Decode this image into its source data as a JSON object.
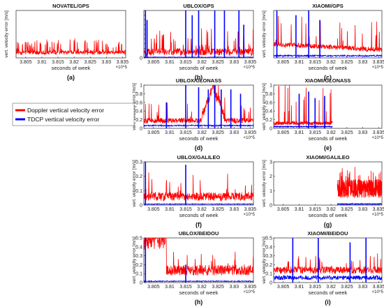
{
  "colors": {
    "doppler": "#ff0000",
    "tdcp": "#0000ff",
    "axis": "#262626",
    "grid": "#ffffff"
  },
  "legend": {
    "items": [
      "Doppler vertical velocity error",
      "TDCP vertical velocity error"
    ],
    "placement": "left-middle"
  },
  "chart_data": [
    {
      "type": "line",
      "title": "NOVATEL/GPS",
      "panel_label": "(a)",
      "xlabel": "seconds of week",
      "ylabel": "vert. velocity error [m/s]",
      "xlim": [
        380200,
        383600
      ],
      "x_multiplier": "×10^5",
      "xticks": [
        380500,
        381000,
        381500,
        382000,
        382500,
        383000,
        383500
      ],
      "xtick_labels": [
        "3.805",
        "3.81",
        "3.815",
        "3.82",
        "3.825",
        "3.83",
        "3.835"
      ],
      "ylim": [
        0,
        0.35
      ],
      "yticks": [],
      "ytick_labels": [],
      "series": [
        {
          "name": "Doppler vertical velocity error",
          "color": "#ff0000",
          "baseline": 0.025,
          "noise": 0.03,
          "spike_rate": 0.15,
          "spike_max": 0.09,
          "x_start": 380200,
          "x_end": 383600
        }
      ]
    },
    {
      "type": "line",
      "title": "UBLOX/GPS",
      "panel_label": "(b)",
      "xlabel": "seconds of week",
      "ylabel": "",
      "xlim": [
        380200,
        383600
      ],
      "x_multiplier": "×10^5",
      "xticks": [
        380500,
        381000,
        381500,
        382000,
        382500,
        383000,
        383500
      ],
      "xtick_labels": [
        "3.805",
        "3.81",
        "3.815",
        "3.82",
        "3.825",
        "3.83",
        "3.835"
      ],
      "ylim": [
        0,
        1
      ],
      "yticks": [
        0,
        0.1,
        0.2,
        0.3,
        0.4,
        0.5,
        0.6,
        0.7,
        0.8,
        0.9,
        1
      ],
      "ytick_labels": [
        "0",
        "",
        "",
        "",
        "",
        "",
        "",
        "",
        "",
        "",
        ""
      ],
      "series": [
        {
          "name": "Doppler vertical velocity error",
          "color": "#ff0000",
          "baseline": 0.05,
          "noise": 0.15,
          "spike_rate": 0.12,
          "spike_max": 0.5,
          "x_start": 380200,
          "x_end": 383600
        },
        {
          "name": "TDCP vertical velocity error",
          "color": "#0000ff",
          "baseline": 0.01,
          "noise": 0.01,
          "spikes": [
            [
              380250,
              1
            ],
            [
              380300,
              0.8
            ],
            [
              381500,
              1
            ],
            [
              381700,
              0.9
            ],
            [
              381900,
              1
            ],
            [
              382400,
              1
            ],
            [
              382700,
              1
            ],
            [
              383150,
              1
            ],
            [
              383300,
              0.7
            ]
          ],
          "x_start": 380200,
          "x_end": 383600
        }
      ]
    },
    {
      "type": "line",
      "title": "XIAOMI/GPS",
      "panel_label": "(c)",
      "xlabel": "seconds of week",
      "ylabel": "vert. velocity error [m/s]",
      "xlim": [
        380200,
        383600
      ],
      "x_multiplier": "×10^5",
      "xticks": [
        380500,
        381000,
        381500,
        382000,
        382500,
        383000,
        383500
      ],
      "xtick_labels": [
        "3.805",
        "3.81",
        "3.815",
        "3.82",
        "3.825",
        "3.83",
        "3.835"
      ],
      "ylim": [
        0,
        1
      ],
      "yticks": [],
      "ytick_labels": [],
      "series": [
        {
          "name": "Doppler vertical velocity error",
          "color": "#ff0000",
          "baseline": 0.12,
          "noise": 0.1,
          "spike_rate": 0.08,
          "spike_max": 0.6,
          "decay": true,
          "x_start": 380200,
          "x_end": 383600
        },
        {
          "name": "TDCP vertical velocity error",
          "color": "#0000ff",
          "baseline": 0.03,
          "noise": 0.03,
          "spikes": [
            [
              380300,
              1
            ],
            [
              380900,
              0.9
            ],
            [
              381300,
              1
            ],
            [
              381650,
              0.8
            ]
          ],
          "x_start": 380200,
          "x_end": 383600
        }
      ]
    },
    {
      "type": "line",
      "title": "UBLOX/GLONASS",
      "panel_label": "(d)",
      "xlabel": "seconds of week",
      "ylabel": "vert. velocity error [m/s]",
      "xlim": [
        380200,
        383600
      ],
      "x_multiplier": "×10^5",
      "xticks": [
        380500,
        381000,
        381500,
        382000,
        382500,
        383000,
        383500
      ],
      "xtick_labels": [
        "3.805",
        "3.81",
        "3.815",
        "3.82",
        "3.825",
        "3.83",
        "3.835"
      ],
      "ylim": [
        0,
        1
      ],
      "yticks": [
        0,
        0.2,
        0.4,
        0.6,
        0.8,
        1
      ],
      "ytick_labels": [
        "0",
        "0.2",
        "0.4",
        "0.6",
        "0.8",
        "1"
      ],
      "series": [
        {
          "name": "Doppler vertical velocity error",
          "color": "#ff0000",
          "baseline": 0.12,
          "noise": 0.12,
          "spike_rate": 0.06,
          "spike_max": 0.5,
          "bump": [
            382000,
            382700,
            0.7
          ],
          "x_start": 380200,
          "x_end": 383600
        },
        {
          "name": "TDCP vertical velocity error",
          "color": "#0000ff",
          "baseline": 0.05,
          "noise": 0.03,
          "spikes": [
            [
              380900,
              0.6
            ],
            [
              381500,
              1
            ],
            [
              381900,
              0.95
            ],
            [
              382200,
              0.9
            ],
            [
              382400,
              1
            ],
            [
              382600,
              0.9
            ],
            [
              382900,
              0.9
            ],
            [
              383200,
              0.8
            ]
          ],
          "x_start": 380200,
          "x_end": 383600
        }
      ]
    },
    {
      "type": "line",
      "title": "XIAOMI/GLONASS",
      "panel_label": "(e)",
      "xlabel": "seconds of week",
      "ylabel": "vert. velocity error [m/s]",
      "xlim": [
        380200,
        383600
      ],
      "x_multiplier": "×10^5",
      "xticks": [
        380500,
        381000,
        381500,
        382000,
        382500,
        383000,
        383500
      ],
      "xtick_labels": [
        "3.805",
        "3.81",
        "3.815",
        "3.82",
        "3.825",
        "3.83",
        "3.835"
      ],
      "ylim": [
        0,
        1
      ],
      "yticks": [
        0,
        0.2,
        0.4,
        0.6,
        0.8,
        1
      ],
      "ytick_labels": [
        "0",
        "0.2",
        "0.4",
        "0.6",
        "0.8",
        "1"
      ],
      "series": [
        {
          "name": "Doppler vertical velocity error",
          "color": "#ff0000",
          "baseline": 0.08,
          "noise": 0.08,
          "spike_rate": 0.04,
          "spike_max": 0.9,
          "x_start": 380200,
          "x_end": 382050
        },
        {
          "name": "TDCP vertical velocity error",
          "color": "#0000ff",
          "baseline": 0.03,
          "noise": 0.02,
          "spikes": [
            [
              381000,
              0.8
            ],
            [
              381300,
              0.85
            ],
            [
              381500,
              0.7
            ],
            [
              381800,
              0.75
            ]
          ],
          "x_start": 380200,
          "x_end": 382050
        }
      ]
    },
    {
      "type": "line",
      "title": "UBLOX/GALILEO",
      "panel_label": "(f)",
      "xlabel": "seconds of week",
      "ylabel": "vert. velocity error [m/s]",
      "xlim": [
        380200,
        383600
      ],
      "x_multiplier": "×10^5",
      "xticks": [
        380500,
        381000,
        381500,
        382000,
        382500,
        383000,
        383500
      ],
      "xtick_labels": [
        "3.805",
        "3.81",
        "3.815",
        "3.82",
        "3.825",
        "3.83",
        "3.835"
      ],
      "ylim": [
        0,
        0.3
      ],
      "yticks": [
        0,
        0.1,
        0.2,
        0.3
      ],
      "ytick_labels": [
        "0",
        "0.1",
        "0.2",
        "0.3"
      ],
      "series": [
        {
          "name": "Doppler vertical velocity error",
          "color": "#ff0000",
          "baseline": 0.03,
          "noise": 0.06,
          "spike_rate": 0.08,
          "spike_max": 0.14,
          "x_start": 380200,
          "x_end": 383600
        },
        {
          "name": "TDCP vertical velocity error",
          "color": "#0000ff",
          "baseline": 0.005,
          "noise": 0.005,
          "spikes": [
            [
              380250,
              0.3
            ],
            [
              381500,
              0.28
            ]
          ],
          "x_start": 380200,
          "x_end": 383600
        }
      ]
    },
    {
      "type": "line",
      "title": "XIAOMI/GALILEO",
      "panel_label": "(g)",
      "xlabel": "seconds of week",
      "ylabel": "vert. velocity error [m/s]",
      "xlim": [
        380200,
        383600
      ],
      "x_multiplier": "×10^5",
      "xticks": [
        380500,
        381000,
        381500,
        382000,
        382500,
        383000,
        383500
      ],
      "xtick_labels": [
        "3.805",
        "3.81",
        "3.815",
        "3.82",
        "3.825",
        "3.83",
        "3.835"
      ],
      "ylim": [
        0,
        3
      ],
      "yticks": [
        0,
        1,
        2,
        3
      ],
      "ytick_labels": [
        "0",
        "1",
        "2",
        "3"
      ],
      "series": [
        {
          "name": "Doppler vertical velocity error",
          "color": "#ff0000",
          "baseline": 0.5,
          "noise": 1.3,
          "spike_rate": 0.1,
          "spike_max": 0.9,
          "x_start": 382200,
          "x_end": 383600
        },
        {
          "name": "TDCP vertical velocity error",
          "color": "#0000ff",
          "baseline": 0.05,
          "noise": 0.05,
          "x_start": 382200,
          "x_end": 383600
        }
      ]
    },
    {
      "type": "line",
      "title": "UBLOX/BEIDOU",
      "panel_label": "(h)",
      "xlabel": "seconds of week",
      "ylabel": "vert. velocity error [m/s]",
      "xlim": [
        380200,
        383600
      ],
      "x_multiplier": "×10^5",
      "xticks": [
        380500,
        381000,
        381500,
        382000,
        382500,
        383000,
        383500
      ],
      "xtick_labels": [
        "3.805",
        "3.81",
        "3.815",
        "3.82",
        "3.825",
        "3.83",
        "3.835"
      ],
      "ylim": [
        0,
        0.5
      ],
      "yticks": [
        0,
        0.1,
        0.2,
        0.3,
        0.4,
        0.5
      ],
      "ytick_labels": [
        "0",
        "0.1",
        "0.2",
        "0.3",
        "0.4",
        "0.5"
      ],
      "series": [
        {
          "name": "Doppler vertical velocity error",
          "color": "#ff0000",
          "baseline": 0.08,
          "noise": 0.12,
          "spike_rate": 0.07,
          "spike_max": 0.2,
          "early": [
            380200,
            380900,
            0.42
          ],
          "x_start": 380200,
          "x_end": 383600
        },
        {
          "name": "TDCP vertical velocity error",
          "color": "#0000ff",
          "baseline": 0.01,
          "noise": 0.01,
          "spikes": [
            [
              380250,
              0.5
            ],
            [
              381500,
              0.2
            ]
          ],
          "x_start": 380200,
          "x_end": 383600
        }
      ]
    },
    {
      "type": "line",
      "title": "XIAOMI/BEIDOU",
      "panel_label": "(i)",
      "xlabel": "seconds of week",
      "ylabel": "vert. velocity error [m/s]",
      "xlim": [
        380200,
        383600
      ],
      "x_multiplier": "×10^5",
      "xticks": [
        380500,
        381000,
        381500,
        382000,
        382500,
        383000,
        383500
      ],
      "xtick_labels": [
        "3.805",
        "3.81",
        "3.815",
        "3.82",
        "3.825",
        "3.83",
        "3.835"
      ],
      "ylim": [
        0,
        0.5
      ],
      "yticks": [
        0,
        0.1,
        0.2,
        0.3,
        0.4,
        0.5
      ],
      "ytick_labels": [
        "0",
        "0.1",
        "0.2",
        "0.3",
        "0.4",
        "0.5"
      ],
      "series": [
        {
          "name": "Doppler vertical velocity error",
          "color": "#ff0000",
          "baseline": 0.1,
          "noise": 0.08,
          "spike_rate": 0.06,
          "spike_max": 0.2,
          "x_start": 380200,
          "x_end": 383600
        },
        {
          "name": "TDCP vertical velocity error",
          "color": "#0000ff",
          "baseline": 0.03,
          "noise": 0.05,
          "spikes": [
            [
              380800,
              0.5
            ],
            [
              381600,
              0.5
            ],
            [
              382600,
              0.45
            ],
            [
              383100,
              0.5
            ]
          ],
          "x_start": 380200,
          "x_end": 383600
        }
      ]
    }
  ]
}
